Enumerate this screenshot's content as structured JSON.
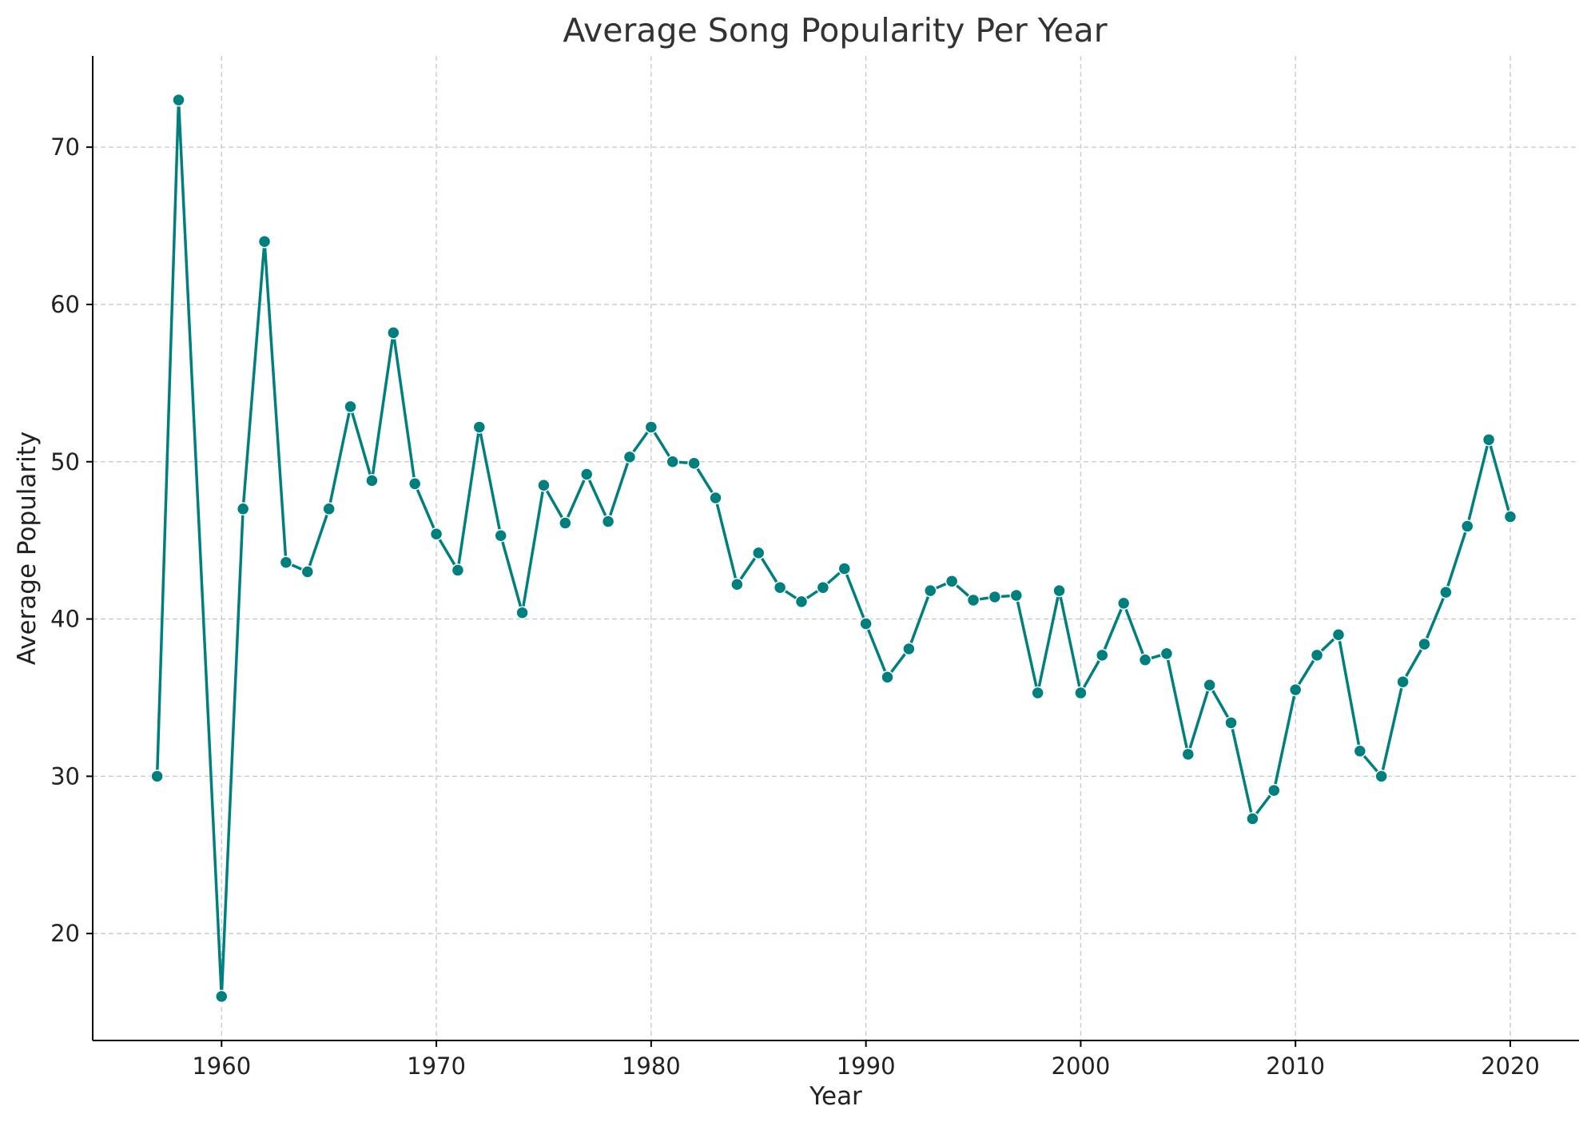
{
  "chart_data": {
    "type": "line",
    "title": "Average Song Popularity Per Year",
    "xlabel": "Year",
    "ylabel": "Average Popularity",
    "xlim": [
      1954,
      2023.2
    ],
    "ylim": [
      13.2,
      75.8
    ],
    "xticks": [
      1960,
      1970,
      1980,
      1990,
      2000,
      2010,
      2020
    ],
    "yticks": [
      20,
      30,
      40,
      50,
      60,
      70
    ],
    "grid": true,
    "color": "#007f7f",
    "series": [
      {
        "x": [
          1957,
          1958,
          1960,
          1961,
          1962,
          1963,
          1964,
          1965,
          1966,
          1967,
          1968,
          1969,
          1970,
          1971,
          1972,
          1973,
          1974,
          1975,
          1976,
          1977,
          1978,
          1979,
          1980,
          1981,
          1982,
          1983,
          1984,
          1985,
          1986,
          1987,
          1988,
          1989,
          1990,
          1991,
          1992,
          1993,
          1994,
          1995,
          1996,
          1997,
          1998,
          1999,
          2000,
          2001,
          2002,
          2003,
          2004,
          2005,
          2006,
          2007,
          2008,
          2009,
          2010,
          2011,
          2012,
          2013,
          2014,
          2015,
          2016,
          2017,
          2018,
          2019,
          2020
        ],
        "values": [
          30.0,
          73.0,
          16.0,
          47.0,
          64.0,
          43.6,
          43.0,
          47.0,
          53.5,
          48.8,
          58.2,
          48.6,
          45.4,
          43.1,
          52.2,
          45.3,
          40.4,
          48.5,
          46.1,
          49.2,
          46.2,
          50.3,
          52.2,
          50.0,
          49.9,
          47.7,
          42.2,
          44.2,
          42.0,
          41.1,
          42.0,
          43.2,
          39.7,
          36.3,
          38.1,
          41.8,
          42.4,
          41.2,
          41.4,
          41.5,
          35.3,
          41.8,
          35.3,
          37.7,
          41.0,
          37.4,
          37.8,
          31.4,
          35.8,
          33.4,
          27.3,
          29.1,
          35.5,
          37.7,
          39.0,
          31.6,
          30.0,
          36.0,
          38.4,
          41.7,
          45.9,
          51.4,
          46.5
        ]
      }
    ]
  }
}
